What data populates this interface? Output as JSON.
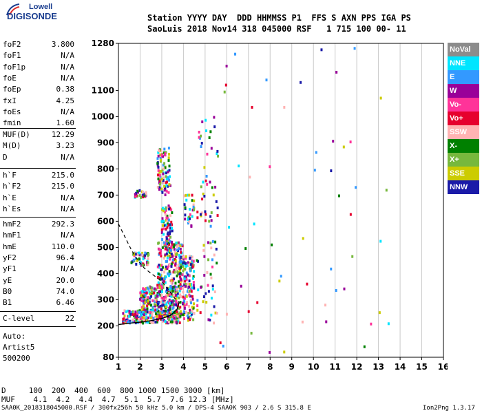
{
  "logo": {
    "line1": "Lowell",
    "line2": "DIGISONDE"
  },
  "header": {
    "line1": "Station YYYY DAY  DDD HHMMSS P1  FFS S AXN PPS IGA PS",
    "line2": "SaoLuis 2018 Nov14 318 045000 RSF   1 715 100 00- 11"
  },
  "params_group1": [
    {
      "label": "foF2",
      "value": "3.800"
    },
    {
      "label": "foF1",
      "value": "N/A"
    },
    {
      "label": "foF1p",
      "value": "N/A"
    },
    {
      "label": "foE",
      "value": "N/A"
    },
    {
      "label": "foEp",
      "value": "0.38"
    },
    {
      "label": "fxI",
      "value": "4.25"
    },
    {
      "label": "foEs",
      "value": "N/A"
    },
    {
      "label": "fmin",
      "value": "1.60"
    }
  ],
  "params_group2": [
    {
      "label": "MUF(D)",
      "value": "12.29"
    },
    {
      "label": "M(D)",
      "value": "3.23"
    },
    {
      "label": "D",
      "value": "N/A"
    }
  ],
  "params_group3": [
    {
      "label": "h`F",
      "value": "215.0"
    },
    {
      "label": "h`F2",
      "value": "215.0"
    },
    {
      "label": "h`E",
      "value": "N/A"
    },
    {
      "label": "h`Es",
      "value": "N/A"
    }
  ],
  "params_group4": [
    {
      "label": "hmF2",
      "value": "292.3"
    },
    {
      "label": "hmF1",
      "value": "N/A"
    },
    {
      "label": "hmE",
      "value": "110.0"
    },
    {
      "label": "yF2",
      "value": "96.4"
    },
    {
      "label": "yF1",
      "value": "N/A"
    },
    {
      "label": "yE",
      "value": "20.0"
    },
    {
      "label": "B0",
      "value": "74.0"
    },
    {
      "label": "B1",
      "value": "6.46"
    }
  ],
  "params_group5": [
    {
      "label": "C-level",
      "value": "22"
    }
  ],
  "auto": {
    "line1": "Auto:",
    "line2": "Artist5",
    "line3": "500200"
  },
  "legend": [
    {
      "label": "NoVal",
      "bg": "#8c8c8c",
      "fg": "#ffffff"
    },
    {
      "label": "NNE",
      "bg": "#00e5ff",
      "fg": "#ffffff"
    },
    {
      "label": "E",
      "bg": "#3399ff",
      "fg": "#ffffff"
    },
    {
      "label": "W",
      "bg": "#990099",
      "fg": "#ffffff"
    },
    {
      "label": "Vo-",
      "bg": "#ff3399",
      "fg": "#ffffff"
    },
    {
      "label": "Vo+",
      "bg": "#e6002e",
      "fg": "#ffffff"
    },
    {
      "label": "SSW",
      "bg": "#ffb3b3",
      "fg": "#ffffff"
    },
    {
      "label": "X-",
      "bg": "#008000",
      "fg": "#ffffff"
    },
    {
      "label": "X+",
      "bg": "#77b83d",
      "fg": "#ffffff"
    },
    {
      "label": "SSE",
      "bg": "#cccc00",
      "fg": "#ffffff"
    },
    {
      "label": "NNW",
      "bg": "#1a1aa8",
      "fg": "#ffffff"
    }
  ],
  "bottom": {
    "line1": "D     100  200  400  600  800 1000 1500 3000 [km]",
    "line2": "MUF    4.1  4.2  4.4  4.7  5.1  5.7  7.6 12.3 [MHz]"
  },
  "footer": {
    "left": "SAA0K_2018318045000.RSF / 300fx256h 50 kHz 5.0 km / DPS-4 SAA0K 903 / 2.6 S 315.8 E",
    "right": "Ion2Png 1.3.17"
  },
  "chart_data": {
    "type": "scatter",
    "xlim": [
      1,
      16
    ],
    "ylim": [
      80,
      1280
    ],
    "xticks": [
      "1",
      "2",
      "3",
      "4",
      "5",
      "6",
      "7",
      "8",
      "9",
      "10",
      "11",
      "12",
      "13",
      "14",
      "15",
      "16"
    ],
    "yticks": [
      {
        "v": 80,
        "label": "80"
      },
      {
        "v": 200,
        "label": "200"
      },
      {
        "v": 300,
        "label": "300"
      },
      {
        "v": 400,
        "label": "400"
      },
      {
        "v": 500,
        "label": "500"
      },
      {
        "v": 600,
        "label": "600"
      },
      {
        "v": 700,
        "label": "700"
      },
      {
        "v": 800,
        "label": "800"
      },
      {
        "v": 900,
        "label": "900"
      },
      {
        "v": 1000,
        "label": "1000"
      },
      {
        "v": 1100,
        "label": "1100"
      },
      {
        "v": 1280,
        "label": "1280"
      }
    ],
    "gridlines_x": [
      2,
      3,
      4,
      5,
      6,
      7,
      8,
      9,
      10,
      11,
      12,
      13,
      14,
      15
    ],
    "trace_profile": [
      [
        1.0,
        205
      ],
      [
        1.5,
        210
      ],
      [
        2.0,
        214
      ],
      [
        2.5,
        220
      ],
      [
        3.0,
        228
      ],
      [
        3.4,
        240
      ],
      [
        3.7,
        262
      ],
      [
        3.8,
        290
      ]
    ],
    "trace_dashed": [
      [
        1.0,
        590
      ],
      [
        1.3,
        540
      ],
      [
        1.6,
        490
      ],
      [
        1.9,
        450
      ],
      [
        2.2,
        420
      ],
      [
        2.6,
        395
      ],
      [
        3.0,
        370
      ],
      [
        3.3,
        340
      ],
      [
        3.6,
        305
      ],
      [
        3.8,
        290
      ]
    ],
    "echo_regions": [
      {
        "x": [
          1.2,
          3.9
        ],
        "y": [
          210,
          260
        ],
        "n": 260
      },
      {
        "x": [
          2.0,
          3.8
        ],
        "y": [
          250,
          350
        ],
        "n": 260
      },
      {
        "x": [
          2.8,
          4.0
        ],
        "y": [
          330,
          520
        ],
        "n": 200
      },
      {
        "x": [
          3.8,
          4.5
        ],
        "y": [
          220,
          470
        ],
        "n": 160
      },
      {
        "x": [
          1.6,
          2.4
        ],
        "y": [
          430,
          480
        ],
        "n": 50
      },
      {
        "x": [
          3.0,
          3.5
        ],
        "y": [
          480,
          660
        ],
        "n": 90
      },
      {
        "x": [
          2.8,
          3.4
        ],
        "y": [
          700,
          880
        ],
        "n": 90
      },
      {
        "x": [
          1.7,
          2.3
        ],
        "y": [
          690,
          720
        ],
        "n": 25
      },
      {
        "x": [
          4.0,
          4.5
        ],
        "y": [
          580,
          700
        ],
        "n": 30
      },
      {
        "x": [
          4.6,
          5.6
        ],
        "y": [
          200,
          1000
        ],
        "n": 90
      },
      {
        "x": [
          5.5,
          13.5
        ],
        "y": [
          90,
          1270
        ],
        "n": 55
      }
    ]
  }
}
